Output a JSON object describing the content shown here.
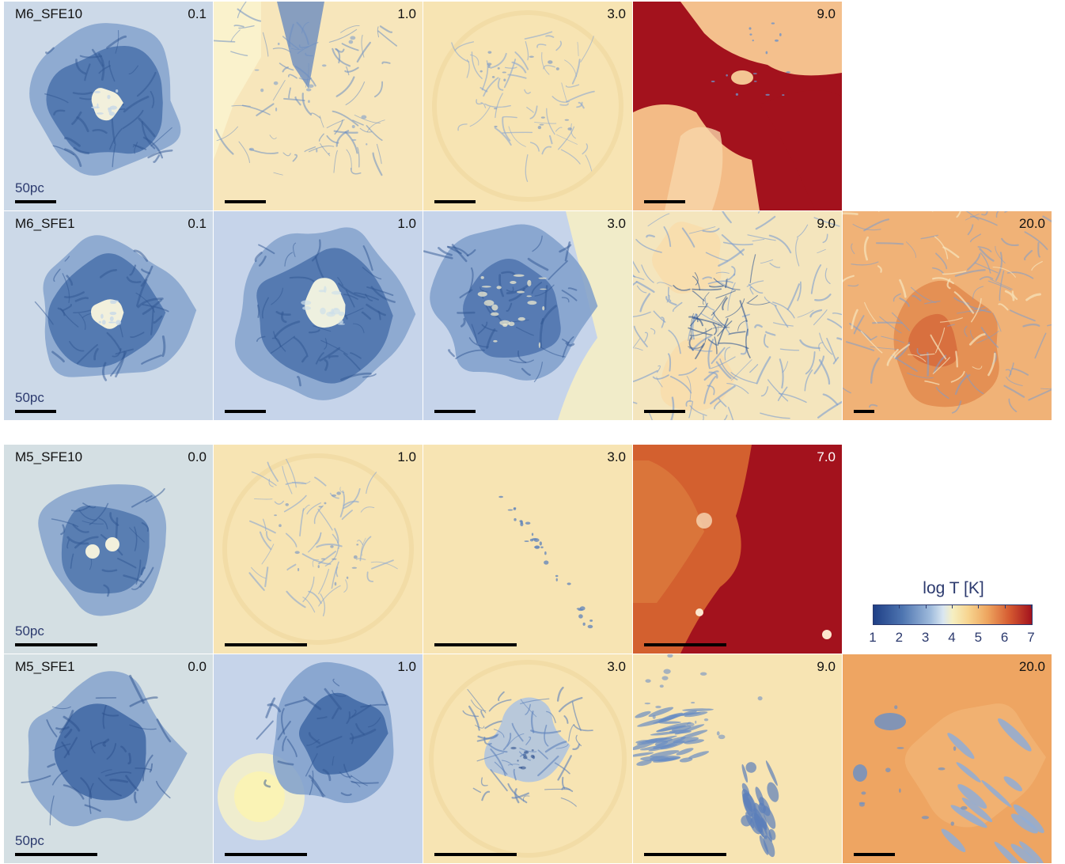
{
  "rows": [
    {
      "name": "M6_SFE10",
      "scalebar_label": "50pc",
      "panels": [
        {
          "time": "0.1",
          "style": "cold"
        },
        {
          "time": "1.0",
          "style": "warm_tongue"
        },
        {
          "time": "3.0",
          "style": "warm_sparse"
        },
        {
          "time": "9.0",
          "style": "hot"
        }
      ]
    },
    {
      "name": "M6_SFE1",
      "scalebar_label": "50pc",
      "panels": [
        {
          "time": "0.1",
          "style": "cold"
        },
        {
          "time": "1.0",
          "style": "cold_big"
        },
        {
          "time": "3.0",
          "style": "cold_warmedge"
        },
        {
          "time": "9.0",
          "style": "warm_filaments"
        },
        {
          "time": "20.0",
          "style": "orange_mixed"
        }
      ]
    },
    {
      "name": "M5_SFE10",
      "scalebar_label": "50pc",
      "panels": [
        {
          "time": "0.0",
          "style": "cold_small"
        },
        {
          "time": "1.0",
          "style": "warm_sparse"
        },
        {
          "time": "3.0",
          "style": "warm_trace"
        },
        {
          "time": "7.0",
          "style": "hot_orange"
        }
      ]
    },
    {
      "name": "M5_SFE1",
      "scalebar_label": "50pc",
      "panels": [
        {
          "time": "0.0",
          "style": "cold_plain"
        },
        {
          "time": "1.0",
          "style": "cold_bubble"
        },
        {
          "time": "3.0",
          "style": "warm_blob"
        },
        {
          "time": "9.0",
          "style": "warm_streaks"
        },
        {
          "time": "20.0",
          "style": "orange_blobs"
        }
      ]
    }
  ],
  "colorbar": {
    "title": "log T [K]",
    "ticks": [
      "1",
      "2",
      "3",
      "4",
      "5",
      "6",
      "7"
    ],
    "colors": [
      "#1f3f86",
      "#4d74b0",
      "#9fbbdc",
      "#d9e6f1",
      "#f6efc1",
      "#f7d48f",
      "#eea55f",
      "#d55a31",
      "#a3121d"
    ]
  }
}
